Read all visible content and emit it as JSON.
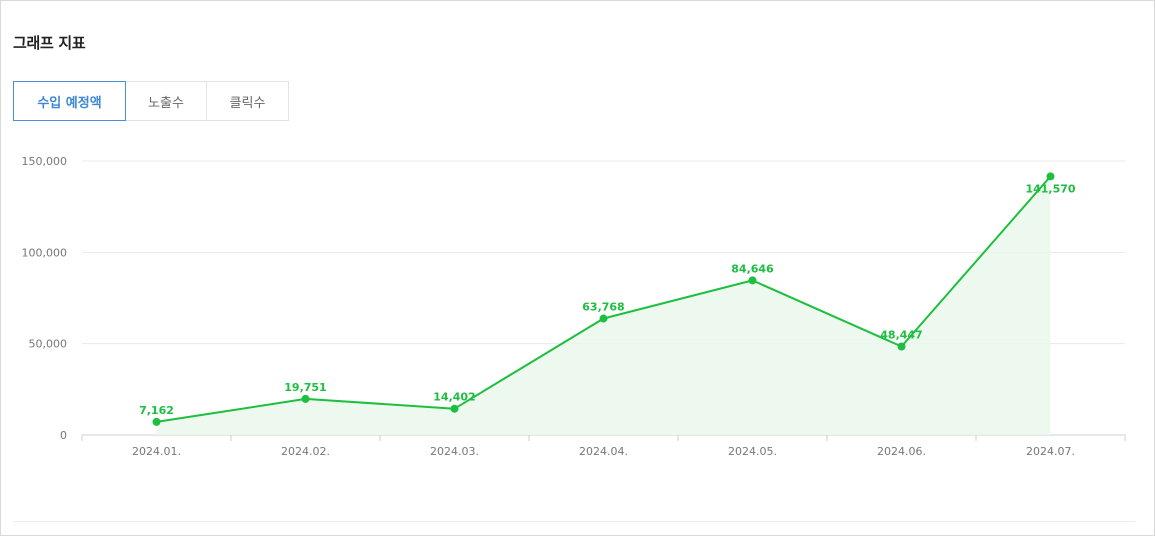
{
  "header": {
    "title": "그래프 지표"
  },
  "tabs": [
    {
      "label": "수입 예정액",
      "active": true
    },
    {
      "label": "노출수",
      "active": false
    },
    {
      "label": "클릭수",
      "active": false
    }
  ],
  "colors": {
    "line": "#1dbf3f",
    "fill": "#eaf8ec",
    "grid": "#e9e9e9",
    "axis": "#cfcfcf",
    "tab_active": "#4a90d9"
  },
  "chart_data": {
    "type": "area",
    "categories": [
      "2024.01.",
      "2024.02.",
      "2024.03.",
      "2024.04.",
      "2024.05.",
      "2024.06.",
      "2024.07."
    ],
    "series": [
      {
        "values": [
          7162,
          19751,
          14402,
          63768,
          84646,
          48447,
          141570
        ],
        "value_labels": [
          "7,162",
          "19,751",
          "14,402",
          "63,768",
          "84,646",
          "48,447",
          "141,570"
        ]
      }
    ],
    "ylim": [
      0,
      150000
    ],
    "yticks": [
      0,
      50000,
      100000,
      150000
    ],
    "ytick_labels": [
      "0",
      "50,000",
      "100,000",
      "150,000"
    ],
    "grid": true,
    "legend": "none"
  }
}
